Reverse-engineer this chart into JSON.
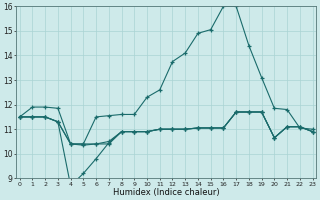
{
  "title": "",
  "xlabel": "Humidex (Indice chaleur)",
  "bg_color": "#ceeaea",
  "grid_color": "#aad4d4",
  "line_color": "#1a6b6b",
  "xmin": 0,
  "xmax": 23,
  "ymin": 9,
  "ymax": 16,
  "series": {
    "line1": [
      11.5,
      11.9,
      11.9,
      11.85,
      10.4,
      10.4,
      11.5,
      11.55,
      11.6,
      11.6,
      12.3,
      12.6,
      13.75,
      14.1,
      14.9,
      15.05,
      16.0,
      16.0,
      14.4,
      13.1,
      11.85,
      11.8,
      11.05,
      11.0
    ],
    "line2": [
      11.5,
      11.5,
      11.5,
      11.3,
      10.4,
      10.4,
      10.4,
      10.4,
      10.9,
      10.9,
      10.9,
      11.0,
      11.0,
      11.0,
      11.05,
      11.05,
      11.05,
      11.7,
      11.7,
      11.7,
      10.65,
      11.1,
      11.1,
      10.9
    ],
    "line3": [
      11.5,
      11.5,
      11.5,
      11.3,
      10.4,
      10.35,
      10.4,
      10.5,
      10.9,
      10.9,
      10.9,
      11.0,
      11.0,
      11.0,
      11.05,
      11.05,
      11.05,
      11.7,
      11.7,
      11.7,
      10.65,
      11.1,
      11.1,
      10.9
    ],
    "line4": [
      11.5,
      11.5,
      11.5,
      11.3,
      8.7,
      9.2,
      9.8,
      10.45,
      10.9,
      10.9,
      10.9,
      11.0,
      11.0,
      11.0,
      11.05,
      11.05,
      11.05,
      11.7,
      11.7,
      11.7,
      10.65,
      11.1,
      11.1,
      10.9
    ]
  },
  "x": [
    0,
    1,
    2,
    3,
    4,
    5,
    6,
    7,
    8,
    9,
    10,
    11,
    12,
    13,
    14,
    15,
    16,
    17,
    18,
    19,
    20,
    21,
    22,
    23
  ]
}
